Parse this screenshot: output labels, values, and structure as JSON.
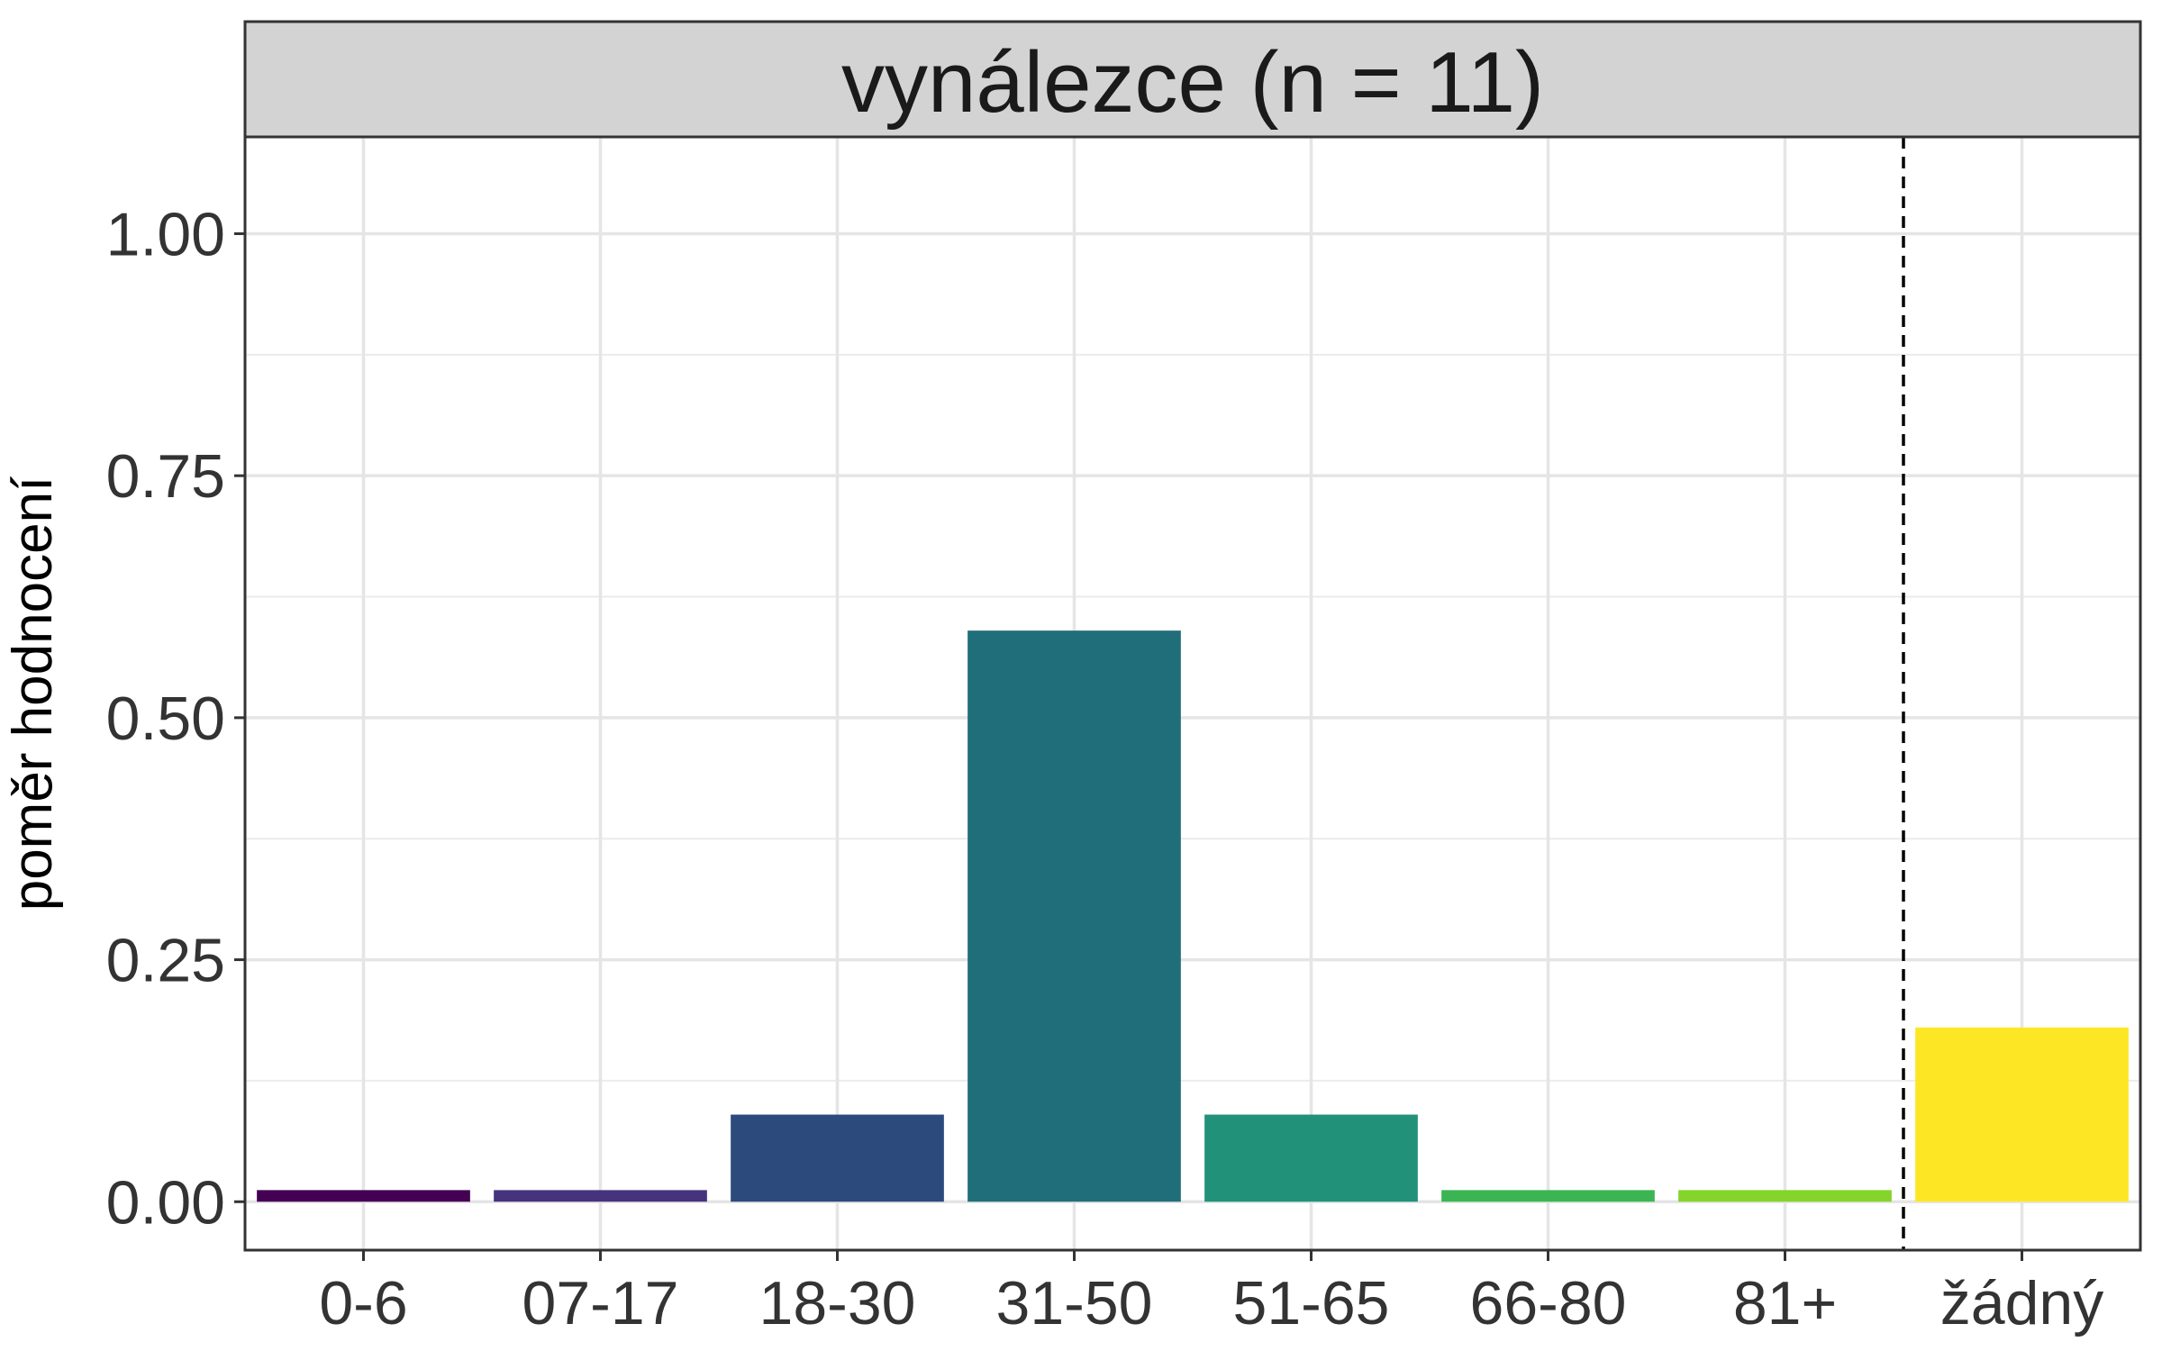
{
  "chart_data": {
    "type": "bar",
    "facet_title": "vynálezce (n = 11)",
    "xlabel": "",
    "ylabel": "poměr hodnocení",
    "categories": [
      "0-6",
      "07-17",
      "18-30",
      "31-50",
      "51-65",
      "66-80",
      "81+",
      "žádný"
    ],
    "values": [
      0.012,
      0.012,
      0.09,
      0.59,
      0.09,
      0.012,
      0.012,
      0.18
    ],
    "colors": [
      "#440154",
      "#46337E",
      "#2C4A7C",
      "#216E7B",
      "#21917A",
      "#3BB553",
      "#84D42A",
      "#FDE725"
    ],
    "ylim": [
      -0.05,
      1.1
    ],
    "yticks": [
      0.0,
      0.25,
      0.5,
      0.75,
      1.0
    ],
    "ytick_labels": [
      "0.00",
      "0.25",
      "0.50",
      "0.75",
      "1.00"
    ],
    "separator": {
      "between": [
        "81+",
        "žádný"
      ],
      "style": "dashed"
    },
    "grid": true,
    "panel_background": "#FFFFFF",
    "strip_background": "#D3D3D3"
  }
}
